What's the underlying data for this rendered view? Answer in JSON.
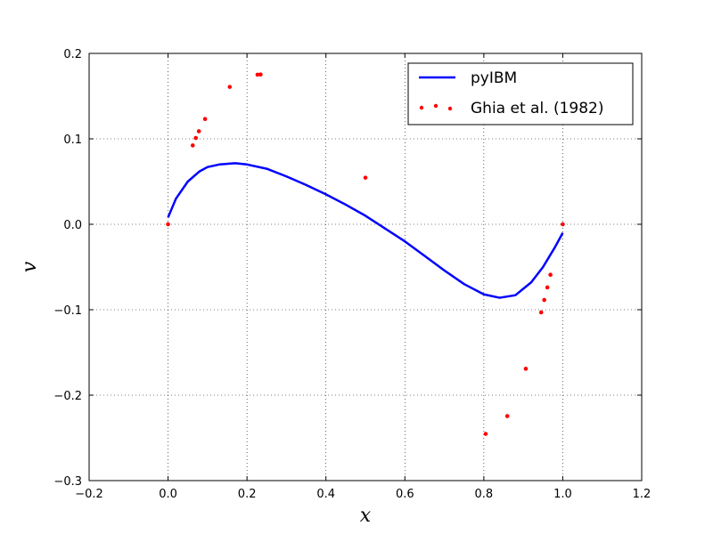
{
  "chart_data": {
    "type": "line",
    "xlabel": "x",
    "ylabel": "v",
    "xlim": [
      -0.2,
      1.2
    ],
    "ylim": [
      -0.3,
      0.2
    ],
    "grid": true,
    "legend_position": "top-right",
    "x_ticks": [
      -0.2,
      0.0,
      0.2,
      0.4,
      0.6,
      0.8,
      1.0,
      1.2
    ],
    "x_tick_labels": [
      "−0.2",
      "0.0",
      "0.2",
      "0.4",
      "0.6",
      "0.8",
      "1.0",
      "1.2"
    ],
    "y_ticks": [
      -0.3,
      -0.2,
      -0.1,
      0.0,
      0.1,
      0.2
    ],
    "y_tick_labels": [
      "−0.3",
      "−0.2",
      "−0.1",
      "0.0",
      "0.1",
      "0.2"
    ],
    "series": [
      {
        "name": "pyIBM",
        "style": "line",
        "color": "#0000ff",
        "x": [
          0.0,
          0.02,
          0.05,
          0.08,
          0.1,
          0.13,
          0.17,
          0.2,
          0.25,
          0.3,
          0.35,
          0.4,
          0.45,
          0.5,
          0.55,
          0.6,
          0.65,
          0.7,
          0.75,
          0.8,
          0.84,
          0.88,
          0.92,
          0.95,
          0.98,
          1.0
        ],
        "y": [
          0.008,
          0.03,
          0.05,
          0.062,
          0.067,
          0.07,
          0.0715,
          0.07,
          0.065,
          0.056,
          0.046,
          0.035,
          0.023,
          0.01,
          -0.005,
          -0.02,
          -0.037,
          -0.054,
          -0.07,
          -0.082,
          -0.086,
          -0.083,
          -0.068,
          -0.05,
          -0.027,
          -0.01
        ]
      },
      {
        "name": "Ghia et al. (1982)",
        "style": "points",
        "color": "#ff0000",
        "x": [
          0.0,
          0.0625,
          0.0703,
          0.0781,
          0.0938,
          0.1563,
          0.2266,
          0.2344,
          0.5,
          0.8047,
          0.8594,
          0.9063,
          0.9453,
          0.9531,
          0.9609,
          0.9688,
          1.0
        ],
        "y": [
          0.0,
          0.0923,
          0.101,
          0.1089,
          0.1232,
          0.1608,
          0.1751,
          0.1753,
          0.0545,
          -0.2453,
          -0.2245,
          -0.1691,
          -0.1031,
          -0.0886,
          -0.0739,
          -0.0591,
          0.0
        ]
      }
    ]
  }
}
